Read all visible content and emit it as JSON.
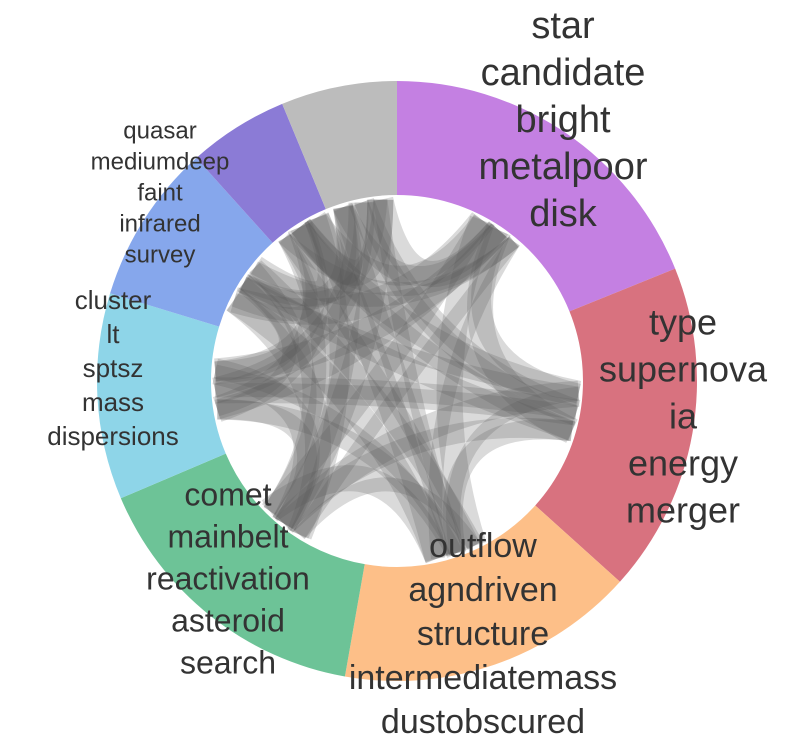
{
  "groups": [
    {
      "words": [
        "star",
        "candidate",
        "bright",
        "metalpoor",
        "disk"
      ],
      "color": "#c480e2"
    },
    {
      "words": [
        "type",
        "supernova",
        "ia",
        "energy",
        "merger"
      ],
      "color": "#d8727f"
    },
    {
      "words": [
        "outflow",
        "agndriven",
        "structure",
        "intermediatemass",
        "dustobscured"
      ],
      "color": "#fdbf88"
    },
    {
      "words": [
        "comet",
        "mainbelt",
        "reactivation",
        "asteroid",
        "search"
      ],
      "color": "#6dc397"
    },
    {
      "words": [
        "cluster",
        "lt",
        "sptsz",
        "mass",
        "dispersions"
      ],
      "color": "#8ed5e8"
    },
    {
      "words": [
        "quasar",
        "mediumdeep",
        "faint",
        "infrared",
        "survey"
      ],
      "color": "#86a7ec"
    },
    {
      "words": [],
      "color": "#8b7bd6"
    },
    {
      "words": [],
      "color": "#bcbcbc"
    }
  ]
}
